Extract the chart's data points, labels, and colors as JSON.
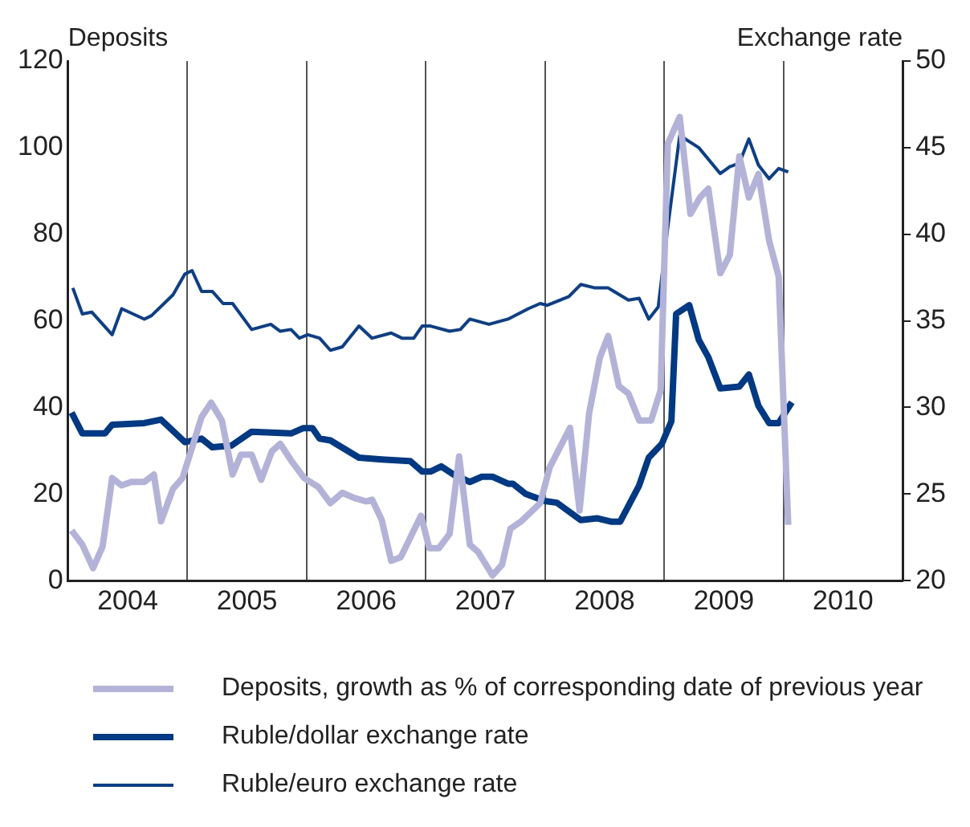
{
  "chart_data": {
    "type": "line",
    "ylabel": "Deposits",
    "y2label": "Exchange rate",
    "xlim": [
      2004,
      2011
    ],
    "xticks": [
      {
        "value": 2004.5,
        "label": "2004"
      },
      {
        "value": 2005,
        "label": null
      },
      {
        "value": 2005.5,
        "label": "2005"
      },
      {
        "value": 2006,
        "label": null
      },
      {
        "value": 2006.5,
        "label": "2006"
      },
      {
        "value": 2007,
        "label": null
      },
      {
        "value": 2007.5,
        "label": "2007"
      },
      {
        "value": 2008,
        "label": null
      },
      {
        "value": 2008.5,
        "label": "2008"
      },
      {
        "value": 2009,
        "label": null
      },
      {
        "value": 2009.5,
        "label": "2009"
      },
      {
        "value": 2010,
        "label": null
      },
      {
        "value": 2010.5,
        "label": "2010"
      }
    ],
    "ylim": [
      0,
      120
    ],
    "yticks": [
      0,
      20,
      40,
      60,
      80,
      100,
      120
    ],
    "y2lim": [
      20,
      50
    ],
    "y2ticks": [
      20,
      25,
      30,
      35,
      40,
      45,
      50
    ],
    "grid": "x",
    "legend": "bottom",
    "marker": "none",
    "series": [
      {
        "name": "Deposits, growth as % of corresponding date of previous year",
        "color": "#b3b3d9",
        "x": [
          2004.03,
          2004.12,
          2004.21,
          2004.29,
          2004.37,
          2004.45,
          2004.53,
          2004.64,
          2004.72,
          2004.78,
          2004.88,
          2004.96,
          2005.04,
          2005.12,
          2005.2,
          2005.29,
          2005.38,
          2005.45,
          2005.54,
          2005.62,
          2005.71,
          2005.78,
          2005.87,
          2005.98,
          2006.1,
          2006.2,
          2006.3,
          2006.4,
          2006.5,
          2006.55,
          2006.63,
          2006.71,
          2006.79,
          2006.96,
          2007.03,
          2007.11,
          2007.2,
          2007.28,
          2007.37,
          2007.44,
          2007.56,
          2007.64,
          2007.71,
          2007.8,
          2007.96,
          2008.04,
          2008.21,
          2008.29,
          2008.37,
          2008.46,
          2008.53,
          2008.62,
          2008.7,
          2008.79,
          2008.89,
          2008.97,
          2009.03,
          2009.13,
          2009.22,
          2009.3,
          2009.37,
          2009.47,
          2009.55,
          2009.63,
          2009.71,
          2009.79,
          2009.88,
          2009.96,
          2010.04
        ],
        "values": [
          11.6,
          8.3,
          2.9,
          7.9,
          23.7,
          22.0,
          22.8,
          22.8,
          24.5,
          13.7,
          21.2,
          23.7,
          30.7,
          37.8,
          41.1,
          37.0,
          24.5,
          29.1,
          29.1,
          23.3,
          29.9,
          31.6,
          27.8,
          23.7,
          21.6,
          17.9,
          20.3,
          19.1,
          18.3,
          18.7,
          14.1,
          4.6,
          5.4,
          15.0,
          7.5,
          7.5,
          10.8,
          28.7,
          8.3,
          6.6,
          1.2,
          3.7,
          12.0,
          13.7,
          17.9,
          26.2,
          35.3,
          16.2,
          38.6,
          51.5,
          56.5,
          44.9,
          43.2,
          37.0,
          37.0,
          44.0,
          100.9,
          107.1,
          84.7,
          88.5,
          90.5,
          71.0,
          75.2,
          98.0,
          88.5,
          93.9,
          78.5,
          70.2,
          12.9
        ]
      },
      {
        "name": "Ruble/dollar exchange rate",
        "color": "#003a87",
        "axis": "y2",
        "x": [
          2004.03,
          2004.12,
          2004.31,
          2004.37,
          2004.64,
          2004.78,
          2004.98,
          2005.12,
          2005.21,
          2005.37,
          2005.54,
          2005.87,
          2005.97,
          2006.05,
          2006.11,
          2006.2,
          2006.44,
          2006.63,
          2006.87,
          2006.97,
          2007.04,
          2007.13,
          2007.24,
          2007.37,
          2007.47,
          2007.56,
          2007.69,
          2007.73,
          2007.84,
          2008.0,
          2008.1,
          2008.3,
          2008.44,
          2008.56,
          2008.63,
          2008.79,
          2008.87,
          2008.98,
          2009.06,
          2009.1,
          2009.21,
          2009.29,
          2009.37,
          2009.47,
          2009.63,
          2009.71,
          2009.79,
          2009.88,
          2009.96,
          2010.07
        ],
        "values": [
          29.7,
          28.5,
          28.5,
          29.0,
          29.1,
          29.3,
          28.0,
          28.2,
          27.7,
          27.8,
          28.6,
          28.5,
          28.8,
          28.8,
          28.2,
          28.1,
          27.1,
          27.0,
          26.9,
          26.3,
          26.3,
          26.6,
          26.1,
          25.7,
          26.0,
          26.0,
          25.6,
          25.6,
          25.0,
          24.6,
          24.5,
          23.5,
          23.6,
          23.4,
          23.4,
          25.5,
          27.1,
          27.9,
          29.2,
          35.4,
          35.9,
          33.9,
          32.9,
          31.1,
          31.2,
          31.9,
          30.1,
          29.1,
          29.1,
          30.3
        ]
      },
      {
        "name": "Ruble/euro exchange rate",
        "color": "#0a3f8c",
        "axis": "y2",
        "x": [
          2004.04,
          2004.12,
          2004.2,
          2004.37,
          2004.45,
          2004.64,
          2004.7,
          2004.88,
          2004.98,
          2005.04,
          2005.12,
          2005.21,
          2005.3,
          2005.38,
          2005.54,
          2005.7,
          2005.78,
          2005.87,
          2005.94,
          2006.01,
          2006.11,
          2006.2,
          2006.3,
          2006.44,
          2006.55,
          2006.71,
          2006.8,
          2006.9,
          2006.97,
          2007.04,
          2007.2,
          2007.29,
          2007.37,
          2007.53,
          2007.69,
          2007.86,
          2007.96,
          2008.02,
          2008.2,
          2008.3,
          2008.42,
          2008.53,
          2008.7,
          2008.79,
          2008.87,
          2008.95,
          2009.03,
          2009.13,
          2009.29,
          2009.47,
          2009.55,
          2009.63,
          2009.71,
          2009.79,
          2009.88,
          2009.96,
          2010.04
        ],
        "values": [
          36.9,
          35.4,
          35.5,
          34.2,
          35.7,
          35.1,
          35.3,
          36.5,
          37.7,
          37.9,
          36.7,
          36.7,
          36.0,
          36.0,
          34.5,
          34.8,
          34.4,
          34.5,
          34.0,
          34.2,
          34.0,
          33.3,
          33.5,
          34.7,
          34.0,
          34.3,
          34.0,
          34.0,
          34.7,
          34.7,
          34.4,
          34.5,
          35.1,
          34.8,
          35.1,
          35.7,
          36.0,
          35.9,
          36.4,
          37.1,
          36.9,
          36.9,
          36.2,
          36.3,
          35.1,
          35.8,
          40.4,
          45.7,
          45.0,
          43.5,
          43.9,
          44.1,
          45.5,
          44.0,
          43.2,
          43.8,
          43.6
        ]
      }
    ]
  }
}
